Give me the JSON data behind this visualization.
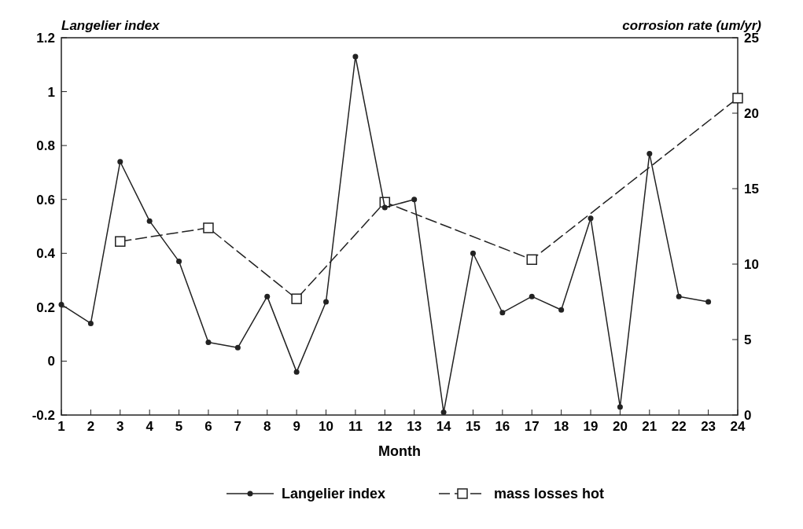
{
  "chart_data": {
    "type": "line",
    "xlabel": "Month",
    "ylabel": "Langelier index",
    "y2label": "corrosion rate (um/yr)",
    "x": [
      1,
      2,
      3,
      4,
      5,
      6,
      7,
      8,
      9,
      10,
      11,
      12,
      13,
      14,
      15,
      16,
      17,
      18,
      19,
      20,
      21,
      22,
      23
    ],
    "xlim": [
      1,
      24
    ],
    "xticks": [
      1,
      2,
      3,
      4,
      5,
      6,
      7,
      8,
      9,
      10,
      11,
      12,
      13,
      14,
      15,
      16,
      17,
      18,
      19,
      20,
      21,
      22,
      23,
      24
    ],
    "ylim": [
      -0.2,
      1.2
    ],
    "yticks": [
      -0.2,
      0,
      0.2,
      0.4,
      0.6,
      0.8,
      1,
      1.2
    ],
    "y2lim": [
      0,
      25
    ],
    "y2ticks": [
      0,
      5,
      10,
      15,
      20,
      25
    ],
    "series": [
      {
        "name": "Langelier index",
        "color": "#222222",
        "marker": "circle",
        "line_style": "solid",
        "values": [
          0.21,
          0.14,
          0.74,
          0.52,
          0.37,
          0.07,
          0.05,
          0.24,
          -0.04,
          0.22,
          1.13,
          0.57,
          0.6,
          -0.19,
          0.4,
          0.18,
          0.24,
          0.19,
          0.53,
          -0.17,
          0.77,
          0.24,
          0.22
        ]
      },
      {
        "name": "mass losses hot",
        "color": "#222222",
        "marker": "square",
        "line_style": "dashed",
        "axis": "y2",
        "x": [
          3,
          6,
          9,
          12,
          17,
          24
        ],
        "values": [
          11.5,
          12.4,
          7.7,
          14.1,
          10.3,
          21
        ]
      }
    ],
    "legend": "bottom",
    "grid": false
  }
}
